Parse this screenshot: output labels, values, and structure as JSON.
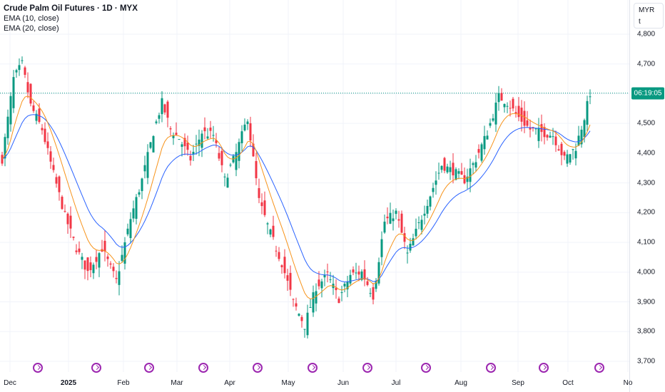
{
  "legend": {
    "title": "Crude Palm Oil Futures · 1D · MYX",
    "indicators": [
      "EMA (10, close)",
      "EMA (20, close)"
    ]
  },
  "price_axis": {
    "currency": "MYR",
    "unit": "t",
    "labels": [
      "4,800",
      "4,700",
      "4,600",
      "4,500",
      "4,400",
      "4,300",
      "4,200",
      "4,100",
      "4,000",
      "3,900",
      "3,800",
      "3,700"
    ],
    "last_tag": "06:19:05"
  },
  "time_axis": {
    "labels": [
      {
        "text": "Dec",
        "bold": false
      },
      {
        "text": "2025",
        "bold": true
      },
      {
        "text": "Feb",
        "bold": false
      },
      {
        "text": "Mar",
        "bold": false
      },
      {
        "text": "Apr",
        "bold": false
      },
      {
        "text": "May",
        "bold": false
      },
      {
        "text": "Jun",
        "bold": false
      },
      {
        "text": "Jul",
        "bold": false
      },
      {
        "text": "Aug",
        "bold": false
      },
      {
        "text": "Sep",
        "bold": false
      },
      {
        "text": "Oct",
        "bold": false
      },
      {
        "text": "No",
        "bold": false
      }
    ]
  },
  "events": {
    "count": 11,
    "icon": "dividend-arrow-icon"
  },
  "colors": {
    "up": "#089981",
    "down": "#f23645",
    "ema10": "#f7931a",
    "ema20": "#2962ff",
    "grid": "#f0f3fa",
    "last_line": "#089981",
    "event": "#9c27b0"
  },
  "chart_data": {
    "type": "candlestick",
    "symbol": "Crude Palm Oil Futures",
    "interval": "1D",
    "exchange": "MYX",
    "ylim": [
      3700,
      4800
    ],
    "last_price": 4602,
    "anchors": [
      [
        0,
        4380
      ],
      [
        4,
        4650
      ],
      [
        7,
        4700
      ],
      [
        10,
        4560
      ],
      [
        14,
        4480
      ],
      [
        18,
        4330
      ],
      [
        22,
        4190
      ],
      [
        26,
        4080
      ],
      [
        30,
        4000
      ],
      [
        35,
        4080
      ],
      [
        40,
        3970
      ],
      [
        45,
        4180
      ],
      [
        49,
        4310
      ],
      [
        53,
        4470
      ],
      [
        56,
        4570
      ],
      [
        59,
        4480
      ],
      [
        62,
        4450
      ],
      [
        66,
        4380
      ],
      [
        70,
        4470
      ],
      [
        74,
        4460
      ],
      [
        78,
        4310
      ],
      [
        82,
        4400
      ],
      [
        86,
        4520
      ],
      [
        90,
        4240
      ],
      [
        94,
        4130
      ],
      [
        98,
        4030
      ],
      [
        102,
        3900
      ],
      [
        106,
        3820
      ],
      [
        110,
        3950
      ],
      [
        114,
        3990
      ],
      [
        118,
        3910
      ],
      [
        122,
        3990
      ],
      [
        126,
        4000
      ],
      [
        130,
        3920
      ],
      [
        134,
        4170
      ],
      [
        138,
        4200
      ],
      [
        142,
        4060
      ],
      [
        146,
        4160
      ],
      [
        150,
        4260
      ],
      [
        154,
        4360
      ],
      [
        158,
        4340
      ],
      [
        162,
        4310
      ],
      [
        166,
        4380
      ],
      [
        170,
        4470
      ],
      [
        174,
        4590
      ],
      [
        177,
        4570
      ],
      [
        181,
        4520
      ],
      [
        185,
        4480
      ],
      [
        189,
        4470
      ],
      [
        193,
        4460
      ],
      [
        197,
        4380
      ],
      [
        201,
        4420
      ],
      [
        204,
        4520
      ],
      [
        206,
        4602
      ]
    ]
  }
}
